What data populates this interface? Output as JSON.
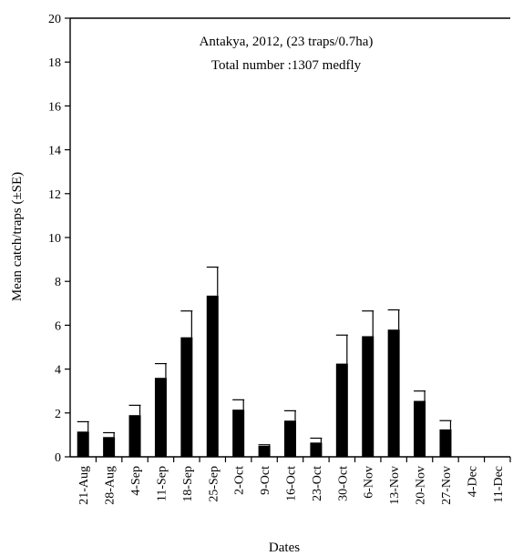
{
  "chart_data": {
    "type": "bar",
    "annotation_lines": [
      "Antakya, 2012, (23 traps/0.7ha)",
      "Total number :1307 medfly"
    ],
    "xlabel": "Dates",
    "ylabel": "Mean catch/traps (±SE)",
    "ylim": [
      0,
      20
    ],
    "yticks": [
      0,
      2,
      4,
      6,
      8,
      10,
      12,
      14,
      16,
      18,
      20
    ],
    "categories": [
      "21-Aug",
      "28-Aug",
      "4-Sep",
      "11-Sep",
      "18-Sep",
      "25-Sep",
      "2-Oct",
      "9-Oct",
      "16-Oct",
      "23-Oct",
      "30-Oct",
      "6-Nov",
      "13-Nov",
      "20-Nov",
      "27-Nov",
      "4-Dec",
      "11-Dec"
    ],
    "values": [
      1.15,
      0.9,
      1.9,
      3.6,
      5.45,
      7.35,
      2.15,
      0.5,
      1.65,
      0.65,
      4.25,
      5.5,
      5.8,
      2.55,
      1.25,
      0,
      0
    ],
    "errors": [
      0.45,
      0.2,
      0.45,
      0.65,
      1.2,
      1.3,
      0.45,
      0.05,
      0.45,
      0.2,
      1.3,
      1.15,
      0.9,
      0.45,
      0.4,
      0,
      0
    ],
    "bar_color": "#000000",
    "grid": false
  }
}
